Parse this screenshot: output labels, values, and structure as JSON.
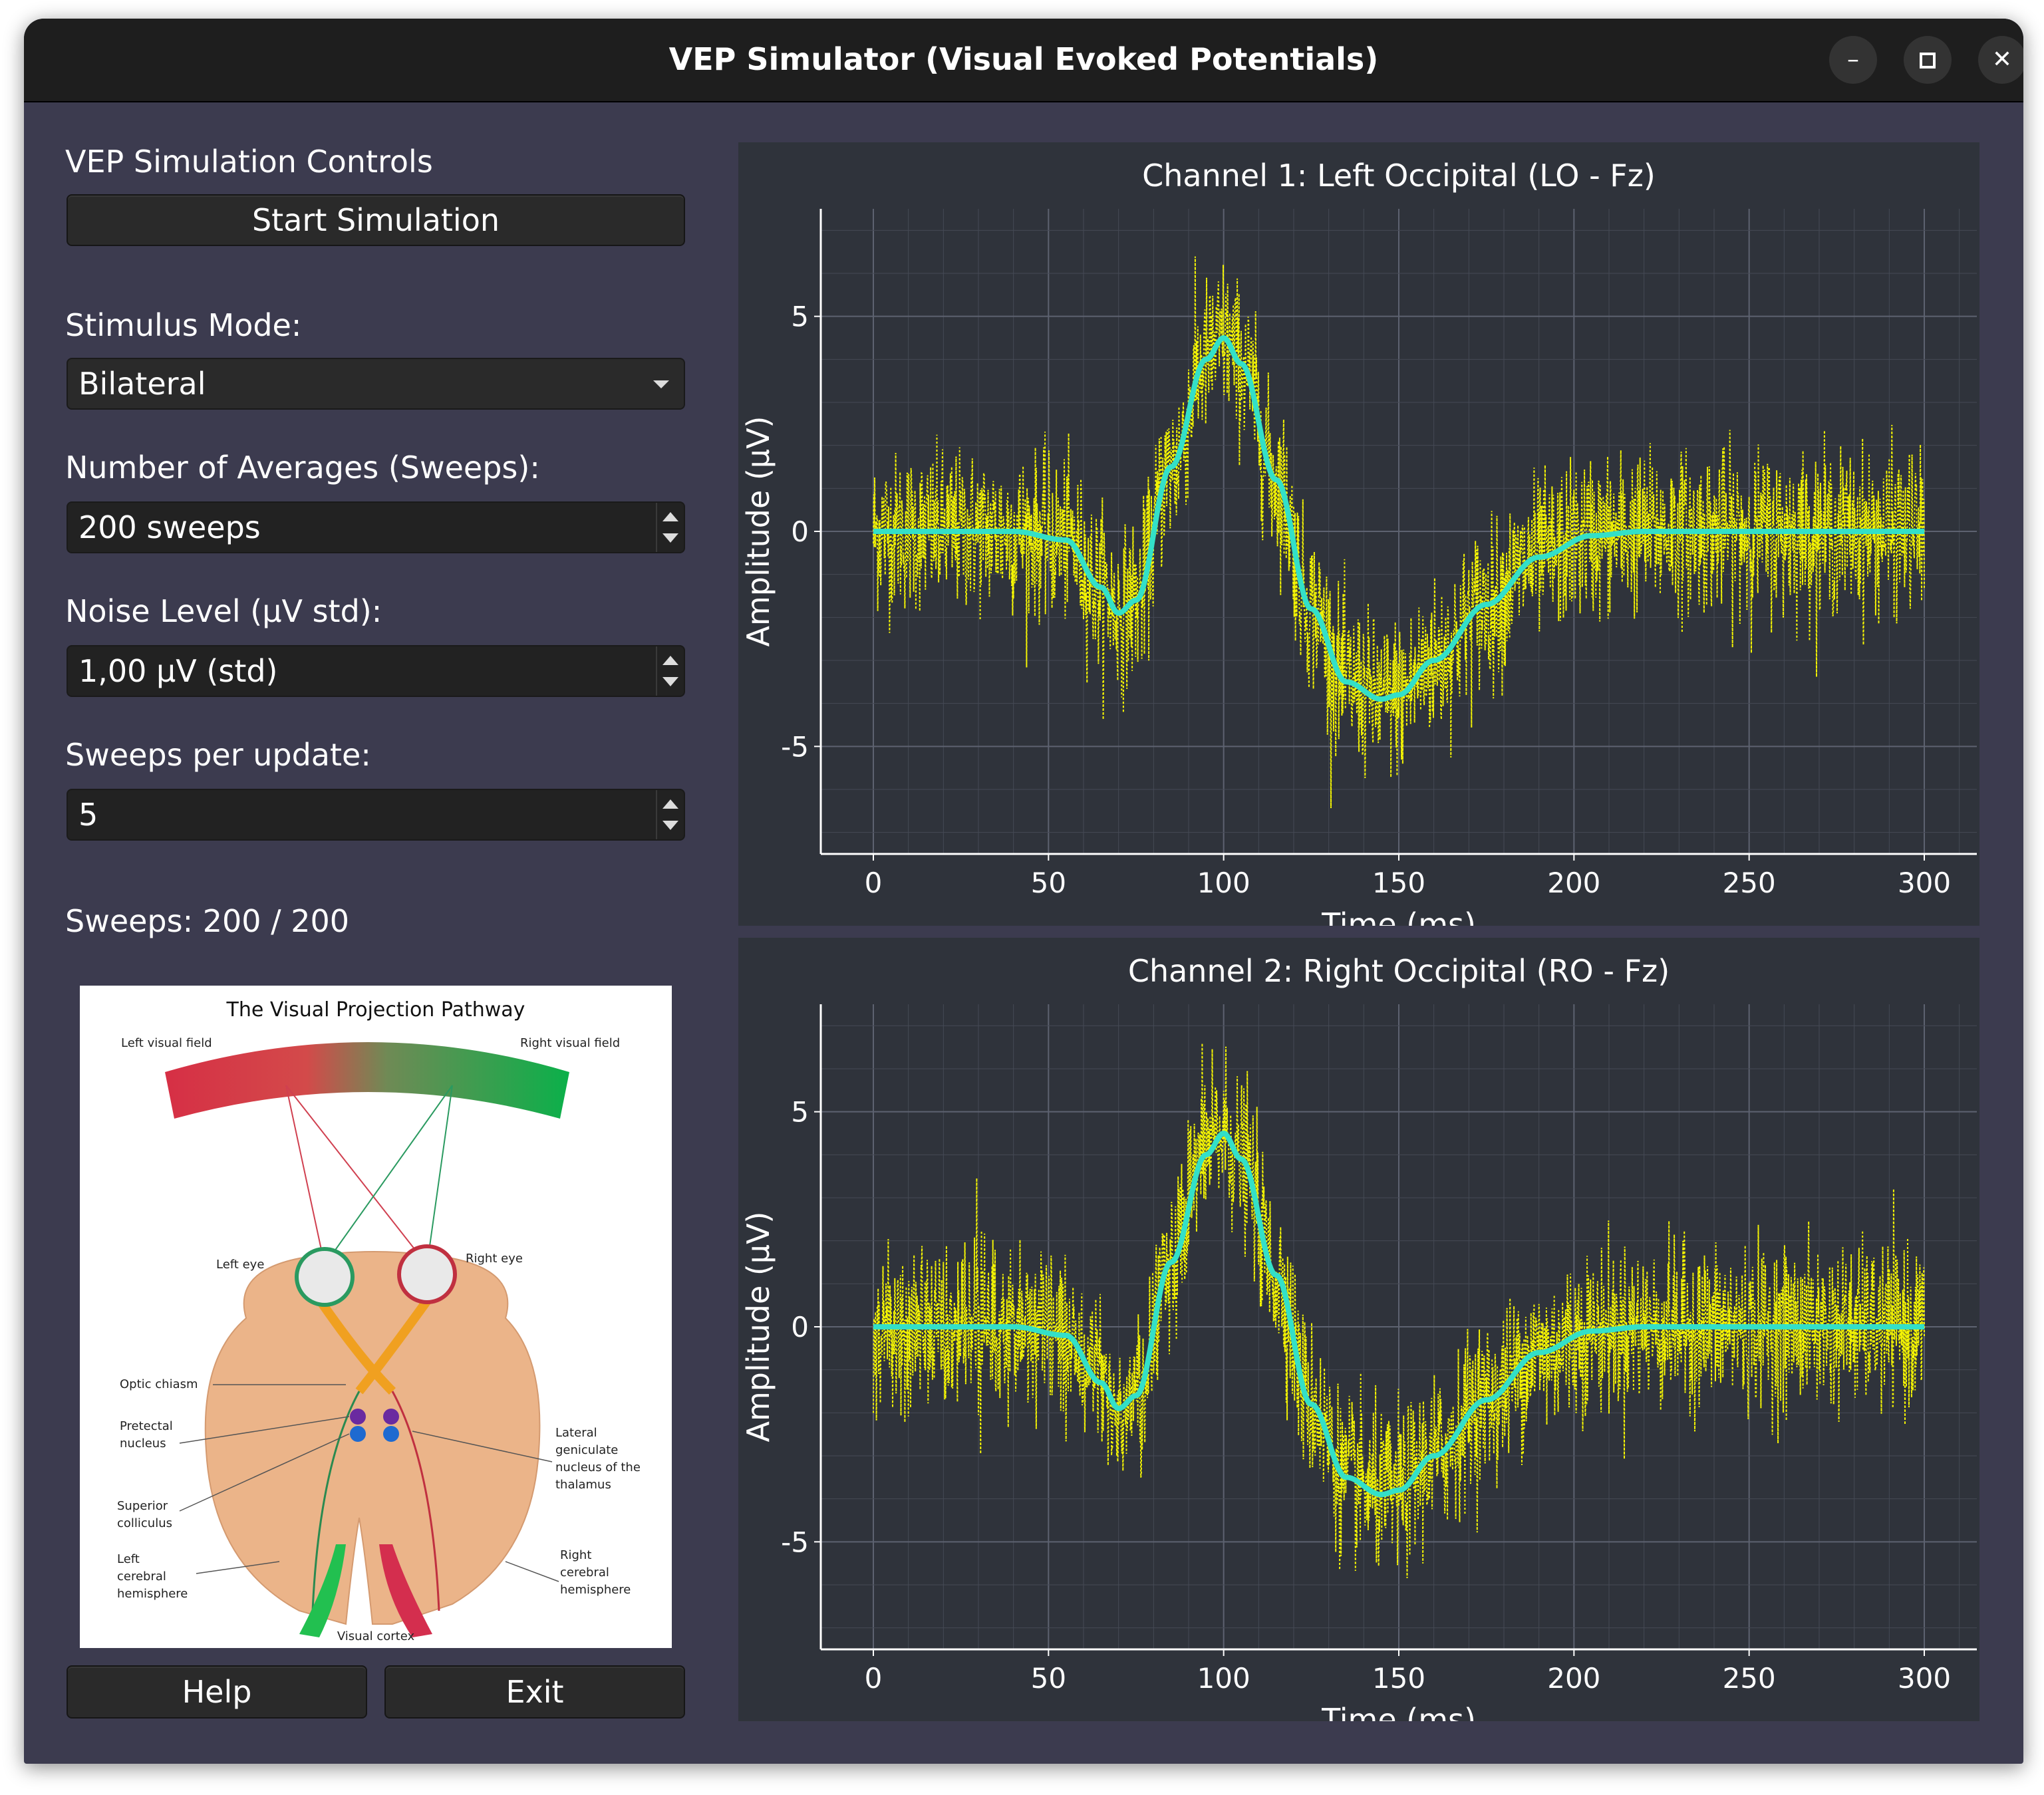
{
  "window": {
    "title": "VEP Simulator (Visual Evoked Potentials)"
  },
  "controls": {
    "heading": "VEP Simulation Controls",
    "start_button": "Start Simulation",
    "stimulus_mode_label": "Stimulus Mode:",
    "stimulus_mode_value": "Bilateral",
    "averages_label": "Number of Averages (Sweeps):",
    "averages_value": "200 sweeps",
    "noise_label": "Noise Level (µV std):",
    "noise_value": "1,00 µV (std)",
    "sweeps_update_label": "Sweeps per update:",
    "sweeps_update_value": "5",
    "sweeps_status": "Sweeps: 200 / 200",
    "help_button": "Help",
    "exit_button": "Exit"
  },
  "diagram": {
    "title": "The Visual Projection Pathway",
    "labels": {
      "left_visual_field": "Left visual field",
      "right_visual_field": "Right visual field",
      "left_eye": "Left eye",
      "right_eye": "Right eye",
      "optic_chiasm": "Optic chiasm",
      "pretectal_1": "Pretectal",
      "pretectal_2": "nucleus",
      "lgn_1": "Lateral",
      "lgn_2": "geniculate",
      "lgn_3": "nucleus of the",
      "lgn_4": "thalamus",
      "sc_1": "Superior",
      "sc_2": "colliculus",
      "lh_1": "Left",
      "lh_2": "cerebral",
      "lh_3": "hemisphere",
      "rh_1": "Right",
      "rh_2": "cerebral",
      "rh_3": "hemisphere",
      "visual_cortex": "Visual cortex"
    }
  },
  "colors": {
    "noisy_trace": "#ffff00",
    "average_trace": "#33e0c8",
    "plot_bg": "#2f333b",
    "window_bg": "#3c3b4f"
  },
  "chart_data": [
    {
      "type": "line",
      "title": "Channel 1: Left Occipital (LO - Fz)",
      "xlabel": "Time (ms)",
      "ylabel": "Amplitude (µV)",
      "xlim": [
        -15,
        315
      ],
      "ylim": [
        -7.5,
        7.5
      ],
      "xticks": [
        0,
        50,
        100,
        150,
        200,
        250,
        300
      ],
      "yticks": [
        -5,
        0,
        5
      ],
      "grid": true,
      "series": [
        {
          "role": "averaged",
          "x": [
            0,
            40,
            55,
            65,
            70,
            75,
            85,
            95,
            100,
            105,
            115,
            125,
            135,
            145,
            150,
            160,
            175,
            190,
            205,
            220,
            300
          ],
          "y": [
            0,
            0,
            -0.2,
            -1.3,
            -1.9,
            -1.6,
            1.5,
            4.0,
            4.5,
            3.9,
            1.2,
            -1.8,
            -3.5,
            -3.9,
            -3.8,
            -3.0,
            -1.7,
            -0.6,
            -0.1,
            0,
            0
          ]
        }
      ]
    },
    {
      "type": "line",
      "title": "Channel 2: Right Occipital (RO - Fz)",
      "xlabel": "Time (ms)",
      "ylabel": "Amplitude (µV)",
      "xlim": [
        -15,
        315
      ],
      "ylim": [
        -7.5,
        7.5
      ],
      "xticks": [
        0,
        50,
        100,
        150,
        200,
        250,
        300
      ],
      "yticks": [
        -5,
        0,
        5
      ],
      "grid": true,
      "series": [
        {
          "role": "averaged",
          "x": [
            0,
            40,
            55,
            65,
            70,
            75,
            85,
            95,
            100,
            105,
            115,
            125,
            135,
            145,
            150,
            160,
            175,
            190,
            205,
            220,
            300
          ],
          "y": [
            0,
            0,
            -0.2,
            -1.3,
            -1.9,
            -1.6,
            1.5,
            4.0,
            4.5,
            3.9,
            1.2,
            -1.8,
            -3.5,
            -3.9,
            -3.8,
            -3.0,
            -1.7,
            -0.6,
            -0.1,
            0,
            0
          ]
        }
      ]
    }
  ]
}
